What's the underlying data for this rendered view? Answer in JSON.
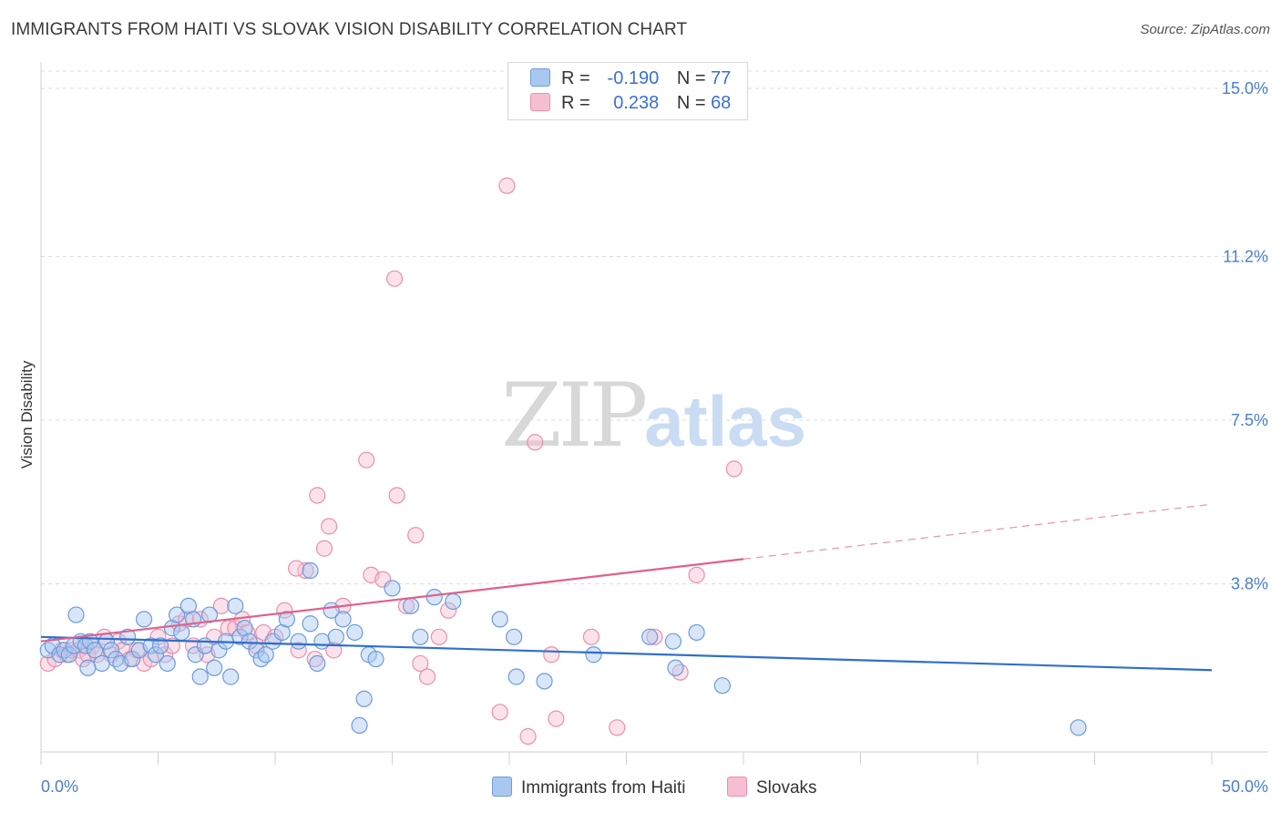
{
  "header": {
    "title": "IMMIGRANTS FROM HAITI VS SLOVAK VISION DISABILITY CORRELATION CHART",
    "source": "Source: ZipAtlas.com"
  },
  "watermark": {
    "zip": "ZIP",
    "atlas": "atlas"
  },
  "legend": {
    "row1": {
      "r_label": "R =",
      "r_value": "-0.190",
      "n_label": "N =",
      "n_value": "77"
    },
    "row2": {
      "r_label": "R =",
      "r_value": "0.238",
      "n_label": "N =",
      "n_value": "68"
    }
  },
  "bottom_legend": {
    "haiti": "Immigrants from Haiti",
    "slovaks": "Slovaks"
  },
  "colors": {
    "haiti_fill": "#a9c8ef",
    "haiti_stroke": "#6b9be0",
    "haiti_line": "#2f6fcc",
    "slovak_fill": "#f6bfd1",
    "slovak_stroke": "#ea8fad",
    "slovak_line": "#e0608a",
    "tick": "#4a7ecf",
    "grid": "#dcdcdc"
  },
  "chart_data": {
    "type": "scatter",
    "title": "IMMIGRANTS FROM HAITI VS SLOVAK VISION DISABILITY CORRELATION CHART",
    "xlabel": "",
    "ylabel": "Vision Disability",
    "xlim": [
      0,
      50
    ],
    "ylim": [
      0,
      15.5
    ],
    "x_tick_labels": [
      "0.0%",
      "50.0%"
    ],
    "y_ticks": [
      3.8,
      7.5,
      11.2,
      15.0
    ],
    "y_tick_labels": [
      "3.8%",
      "7.5%",
      "11.2%",
      "15.0%"
    ],
    "grid": true,
    "legend_position": "top-center",
    "series": [
      {
        "name": "Immigrants from Haiti",
        "R": -0.19,
        "N": 77,
        "trend": {
          "x": [
            0,
            50
          ],
          "y": [
            2.6,
            1.85
          ],
          "dashed_from": null
        },
        "points": [
          [
            0.3,
            2.3
          ],
          [
            0.5,
            2.4
          ],
          [
            0.8,
            2.2
          ],
          [
            1.0,
            2.3
          ],
          [
            1.2,
            2.2
          ],
          [
            1.4,
            2.4
          ],
          [
            1.5,
            3.1
          ],
          [
            1.7,
            2.5
          ],
          [
            1.9,
            2.4
          ],
          [
            2.1,
            2.5
          ],
          [
            2.3,
            2.3
          ],
          [
            2.6,
            2.0
          ],
          [
            2.8,
            2.5
          ],
          [
            3.0,
            2.3
          ],
          [
            3.2,
            2.1
          ],
          [
            3.4,
            2.0
          ],
          [
            3.7,
            2.6
          ],
          [
            3.9,
            2.1
          ],
          [
            4.2,
            2.3
          ],
          [
            4.4,
            3.0
          ],
          [
            4.7,
            2.4
          ],
          [
            4.9,
            2.2
          ],
          [
            5.1,
            2.4
          ],
          [
            5.4,
            2.0
          ],
          [
            5.6,
            2.8
          ],
          [
            5.8,
            3.1
          ],
          [
            6.0,
            2.7
          ],
          [
            6.3,
            3.3
          ],
          [
            6.5,
            3.0
          ],
          [
            6.6,
            2.2
          ],
          [
            7.0,
            2.4
          ],
          [
            7.2,
            3.1
          ],
          [
            7.4,
            1.9
          ],
          [
            7.6,
            2.3
          ],
          [
            7.9,
            2.5
          ],
          [
            8.1,
            1.7
          ],
          [
            8.3,
            3.3
          ],
          [
            8.5,
            2.6
          ],
          [
            8.7,
            2.8
          ],
          [
            8.9,
            2.5
          ],
          [
            9.2,
            2.3
          ],
          [
            9.4,
            2.1
          ],
          [
            9.6,
            2.2
          ],
          [
            9.9,
            2.5
          ],
          [
            10.3,
            2.7
          ],
          [
            10.5,
            3.0
          ],
          [
            11.0,
            2.5
          ],
          [
            11.5,
            2.9
          ],
          [
            11.8,
            2.0
          ],
          [
            12.0,
            2.5
          ],
          [
            12.4,
            3.2
          ],
          [
            12.6,
            2.6
          ],
          [
            12.9,
            3.0
          ],
          [
            13.4,
            2.7
          ],
          [
            13.8,
            1.2
          ],
          [
            14.0,
            2.2
          ],
          [
            14.3,
            2.1
          ],
          [
            15.0,
            3.7
          ],
          [
            15.8,
            3.3
          ],
          [
            16.2,
            2.6
          ],
          [
            16.8,
            3.5
          ],
          [
            17.6,
            3.4
          ],
          [
            11.5,
            4.1
          ],
          [
            13.6,
            0.6
          ],
          [
            19.6,
            3.0
          ],
          [
            20.2,
            2.6
          ],
          [
            20.3,
            1.7
          ],
          [
            21.5,
            1.6
          ],
          [
            23.6,
            2.2
          ],
          [
            26.0,
            2.6
          ],
          [
            27.0,
            2.5
          ],
          [
            27.1,
            1.9
          ],
          [
            28.0,
            2.7
          ],
          [
            29.1,
            1.5
          ],
          [
            44.3,
            0.55
          ],
          [
            2.0,
            1.9
          ],
          [
            6.8,
            1.7
          ]
        ]
      },
      {
        "name": "Slovaks",
        "R": 0.238,
        "N": 68,
        "trend": {
          "x": [
            0,
            50
          ],
          "y": [
            2.5,
            5.6
          ],
          "dashed_from": 30
        },
        "points": [
          [
            0.3,
            2.0
          ],
          [
            0.6,
            2.1
          ],
          [
            0.9,
            2.3
          ],
          [
            1.1,
            2.2
          ],
          [
            1.3,
            2.3
          ],
          [
            1.6,
            2.3
          ],
          [
            1.8,
            2.1
          ],
          [
            2.0,
            2.2
          ],
          [
            2.2,
            2.4
          ],
          [
            2.4,
            2.2
          ],
          [
            2.7,
            2.6
          ],
          [
            3.0,
            2.2
          ],
          [
            3.3,
            2.5
          ],
          [
            3.5,
            2.3
          ],
          [
            3.8,
            2.1
          ],
          [
            4.1,
            2.3
          ],
          [
            4.4,
            2.0
          ],
          [
            4.7,
            2.1
          ],
          [
            5.0,
            2.6
          ],
          [
            5.3,
            2.2
          ],
          [
            5.6,
            2.4
          ],
          [
            5.9,
            2.9
          ],
          [
            6.2,
            3.0
          ],
          [
            6.5,
            2.4
          ],
          [
            6.8,
            3.0
          ],
          [
            7.1,
            2.2
          ],
          [
            7.4,
            2.6
          ],
          [
            7.7,
            3.3
          ],
          [
            8.0,
            2.8
          ],
          [
            8.3,
            2.8
          ],
          [
            8.6,
            3.0
          ],
          [
            8.8,
            2.7
          ],
          [
            9.2,
            2.4
          ],
          [
            9.5,
            2.7
          ],
          [
            10.0,
            2.6
          ],
          [
            10.4,
            3.2
          ],
          [
            11.0,
            2.3
          ],
          [
            11.3,
            4.1
          ],
          [
            11.7,
            2.1
          ],
          [
            12.1,
            4.6
          ],
          [
            12.5,
            2.3
          ],
          [
            12.9,
            3.3
          ],
          [
            10.9,
            4.15
          ],
          [
            11.8,
            5.8
          ],
          [
            12.3,
            5.1
          ],
          [
            13.9,
            6.6
          ],
          [
            14.1,
            4.0
          ],
          [
            14.6,
            3.9
          ],
          [
            15.2,
            5.8
          ],
          [
            15.6,
            3.3
          ],
          [
            16.0,
            4.9
          ],
          [
            16.2,
            2.0
          ],
          [
            16.5,
            1.7
          ],
          [
            17.0,
            2.6
          ],
          [
            17.4,
            3.2
          ],
          [
            15.1,
            10.7
          ],
          [
            19.9,
            12.8
          ],
          [
            21.1,
            7.0
          ],
          [
            19.6,
            0.9
          ],
          [
            20.8,
            0.35
          ],
          [
            21.8,
            2.2
          ],
          [
            22.0,
            0.75
          ],
          [
            23.5,
            2.6
          ],
          [
            24.6,
            0.55
          ],
          [
            26.2,
            2.6
          ],
          [
            27.3,
            1.8
          ],
          [
            28.0,
            4.0
          ],
          [
            29.6,
            6.4
          ]
        ]
      }
    ]
  }
}
